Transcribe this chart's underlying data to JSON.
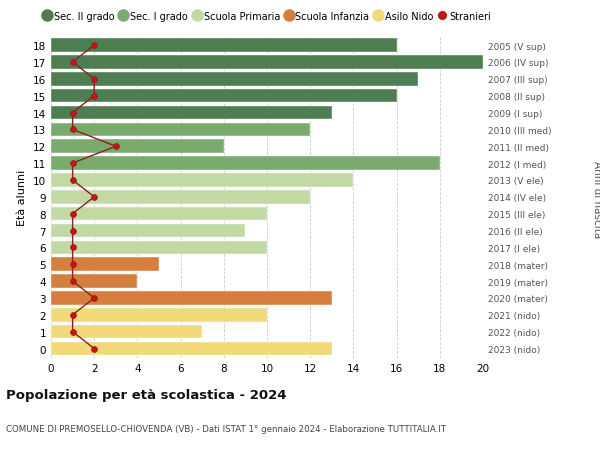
{
  "ages": [
    18,
    17,
    16,
    15,
    14,
    13,
    12,
    11,
    10,
    9,
    8,
    7,
    6,
    5,
    4,
    3,
    2,
    1,
    0
  ],
  "years_labels": [
    "2005 (V sup)",
    "2006 (IV sup)",
    "2007 (III sup)",
    "2008 (II sup)",
    "2009 (I sup)",
    "2010 (III med)",
    "2011 (II med)",
    "2012 (I med)",
    "2013 (V ele)",
    "2014 (IV ele)",
    "2015 (III ele)",
    "2016 (II ele)",
    "2017 (I ele)",
    "2018 (mater)",
    "2019 (mater)",
    "2020 (mater)",
    "2021 (nido)",
    "2022 (nido)",
    "2023 (nido)"
  ],
  "bar_values": [
    16,
    20,
    17,
    16,
    13,
    12,
    8,
    18,
    14,
    12,
    10,
    9,
    10,
    5,
    4,
    13,
    10,
    7,
    13
  ],
  "bar_colors": [
    "#4e7d52",
    "#4e7d52",
    "#4e7d52",
    "#4e7d52",
    "#4e7d52",
    "#7aaa6e",
    "#7aaa6e",
    "#7aaa6e",
    "#c2d9a5",
    "#c2d9a5",
    "#c2d9a5",
    "#c2d9a5",
    "#c2d9a5",
    "#d47f3e",
    "#d47f3e",
    "#d47f3e",
    "#f2d97a",
    "#f2d97a",
    "#f2d97a"
  ],
  "stranieri_values": [
    2,
    1,
    2,
    2,
    1,
    1,
    3,
    1,
    1,
    2,
    1,
    1,
    1,
    1,
    1,
    2,
    1,
    1,
    2
  ],
  "legend_labels": [
    "Sec. II grado",
    "Sec. I grado",
    "Scuola Primaria",
    "Scuola Infanzia",
    "Asilo Nido",
    "Stranieri"
  ],
  "legend_colors": [
    "#4e7d52",
    "#7aaa6e",
    "#c2d9a5",
    "#d47f3e",
    "#f2d97a",
    "#cc1111"
  ],
  "ylabel": "Età alunni",
  "ylabel_right": "Anni di nascita",
  "title": "Popolazione per età scolastica - 2024",
  "subtitle": "COMUNE DI PREMOSELLO-CHIOVENDA (VB) - Dati ISTAT 1° gennaio 2024 - Elaborazione TUTTITALIA.IT",
  "xlim": [
    0,
    20
  ],
  "ylim": [
    -0.55,
    18.55
  ],
  "xticks": [
    0,
    2,
    4,
    6,
    8,
    10,
    12,
    14,
    16,
    18,
    20
  ],
  "background_color": "#ffffff",
  "bar_height": 0.8,
  "grid_color": "#cccccc",
  "stranieri_line_color": "#8b2020",
  "stranieri_dot_color": "#cc1111"
}
